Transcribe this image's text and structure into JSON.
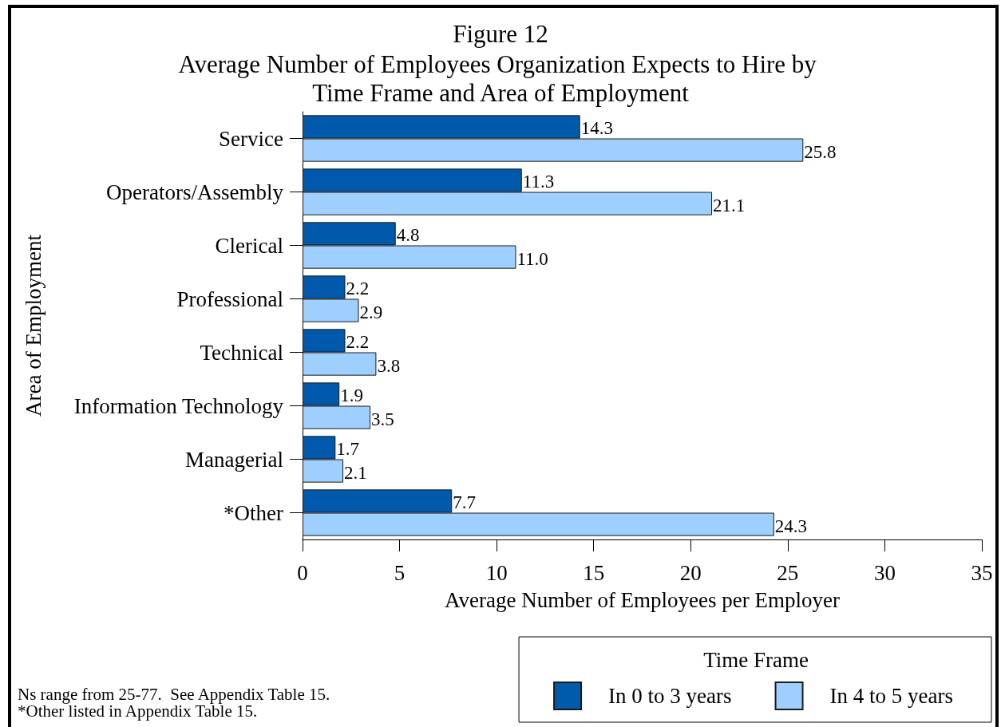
{
  "chart_data": {
    "type": "bar",
    "orientation": "horizontal",
    "title": "Figure 12",
    "subtitle": "Average Number of Employees Organization Expects to Hire by Time Frame and Area of Employment",
    "xlabel": "Average Number of Employees per Employer",
    "ylabel": "Area of Employment",
    "legend_title": "Time Frame",
    "annotations": [
      "Ns range from 25-77.  See Appendix Table 15.",
      "*Other listed in Appendix Table 15."
    ],
    "categories": [
      "Service",
      "Operators/Assembly",
      "Clerical",
      "Professional",
      "Technical",
      "Information Technology",
      "Managerial",
      "*Other"
    ],
    "series": [
      {
        "name": "In 0 to 3 years",
        "color": "#0059ab",
        "values": [
          14.3,
          11.3,
          4.8,
          2.2,
          2.2,
          1.9,
          1.7,
          7.7
        ],
        "value_labels": [
          "14.3",
          "11.3",
          "4.8",
          "2.2",
          "2.2",
          "1.9",
          "1.7",
          "7.7"
        ]
      },
      {
        "name": "In 4 to 5 years",
        "color": "#9fcfff",
        "values": [
          25.8,
          21.1,
          11.0,
          2.9,
          3.8,
          3.5,
          2.1,
          24.3
        ],
        "value_labels": [
          "25.8",
          "21.1",
          "11.0",
          "2.9",
          "3.8",
          "3.5",
          "2.1",
          "24.3"
        ]
      }
    ],
    "xlim": [
      0,
      35
    ],
    "xticks": [
      0,
      5,
      10,
      15,
      20,
      25,
      30,
      35
    ],
    "grid": false,
    "legend": "bottom right"
  }
}
